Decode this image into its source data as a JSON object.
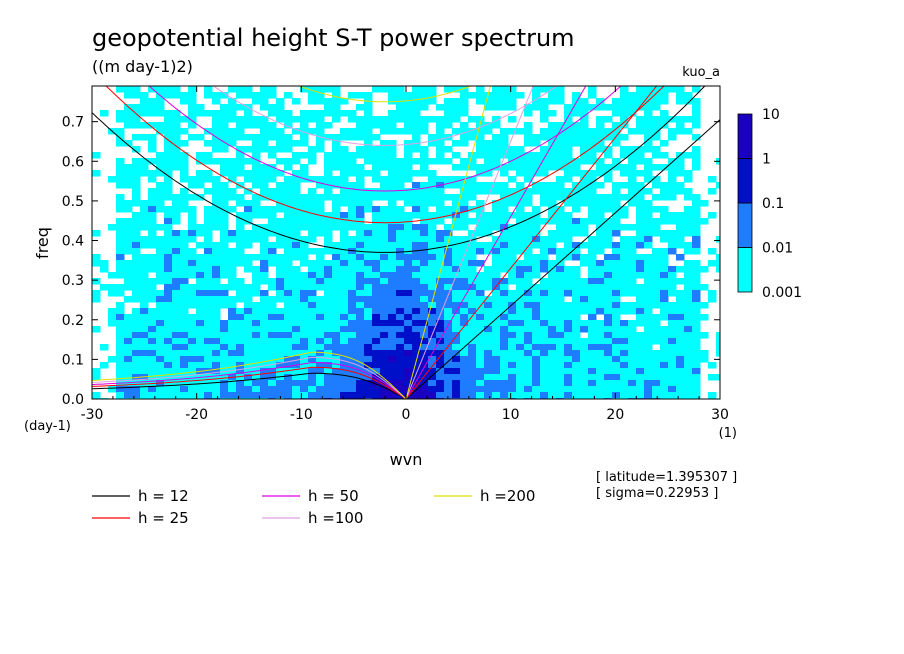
{
  "title": "geopotential height S-T power spectrum",
  "units": "((m day-1)2)",
  "run_name": "kuo_a",
  "info": {
    "latitude": "[ latitude=1.395307 ]",
    "sigma": "[ sigma=0.22953 ]"
  },
  "chart_data": {
    "type": "heatmap",
    "title": "geopotential height S-T power spectrum",
    "subtitle": "((m day-1)2)",
    "xlabel": "wvn",
    "ylabel": "freq",
    "x_unit": "(1)",
    "y_unit": "(day-1)",
    "xlim": [
      -30,
      30
    ],
    "ylim": [
      0,
      0.79
    ],
    "x_ticks": [
      -30,
      -20,
      -10,
      0,
      10,
      20,
      30
    ],
    "x_tick_labels": [
      "-30",
      "-20",
      "-10",
      "0",
      "10",
      "20",
      "30"
    ],
    "y_ticks": [
      0.0,
      0.1,
      0.2,
      0.3,
      0.4,
      0.5,
      0.6,
      0.7
    ],
    "y_tick_labels": [
      "0.0",
      "0.1",
      "0.2",
      "0.3",
      "0.4",
      "0.5",
      "0.6",
      "0.7"
    ],
    "colorbar": {
      "levels": [
        "0.001",
        "0.01",
        "0.1",
        "1",
        "10"
      ],
      "colors": [
        "#00ffff",
        "#1e7cff",
        "#0010c8",
        "#1a00c0"
      ]
    },
    "power_regions": [
      {
        "level": "0.01-0.1",
        "x_range": [
          -12,
          12
        ],
        "freq_top": 0.42
      },
      {
        "level": "0.1-1",
        "x_range": [
          -7,
          7
        ],
        "freq_top": 0.2
      },
      {
        "level": "1-10",
        "x_range": [
          -1,
          2
        ],
        "freq_top": 0.03
      }
    ],
    "dispersion_curves": [
      {
        "name": "h = 12",
        "color": "#000000"
      },
      {
        "name": "h = 25",
        "color": "#ff0000"
      },
      {
        "name": "h = 50",
        "color": "#e000e0"
      },
      {
        "name": "h =100",
        "color": "#e0a0e0"
      },
      {
        "name": "h =200",
        "color": "#e0e000"
      }
    ]
  }
}
